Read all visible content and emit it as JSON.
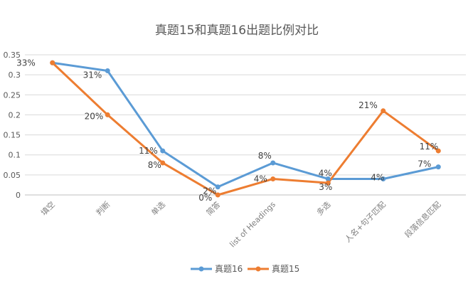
{
  "chart_data": {
    "type": "line",
    "title": "真题15和真题16出题比例对比",
    "categories": [
      "填空",
      "判断",
      "单选",
      "简答",
      "list of Headings",
      "多选",
      "人名+句子匹配",
      "段落信息匹配"
    ],
    "ylim": [
      0,
      0.35
    ],
    "yticks": [
      0,
      0.05,
      0.1,
      0.15,
      0.2,
      0.25,
      0.3,
      0.35
    ],
    "ytick_labels": [
      "0",
      "0.05",
      "0.1",
      "0.15",
      "0.2",
      "0.25",
      "0.3",
      "0.35"
    ],
    "grid": true,
    "legend_position": "bottom",
    "series": [
      {
        "name": "真题16",
        "color": "#5B9BD5",
        "values": [
          0.33,
          0.31,
          0.11,
          0.02,
          0.08,
          0.04,
          0.04,
          0.07
        ],
        "labels": [
          "",
          "31%",
          "11%",
          "2%",
          "8%",
          "4%",
          "4%",
          "7%"
        ]
      },
      {
        "name": "真题15",
        "color": "#ED7D31",
        "values": [
          0.33,
          0.2,
          0.08,
          0.0,
          0.04,
          0.03,
          0.21,
          0.11
        ],
        "labels": [
          "33%",
          "20%",
          "8%",
          "0%",
          "4%",
          "3%",
          "21%",
          "11%"
        ]
      }
    ]
  }
}
